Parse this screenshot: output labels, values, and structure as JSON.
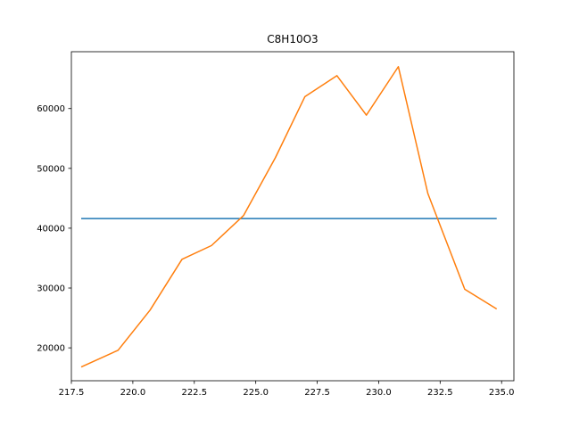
{
  "chart_data": {
    "type": "line",
    "title": "C8H10O3",
    "xlabel": "",
    "ylabel": "",
    "xlim": [
      217.5,
      235.5
    ],
    "ylim": [
      14500,
      69500
    ],
    "x_ticks": [
      217.5,
      220.0,
      222.5,
      225.0,
      227.5,
      230.0,
      232.5,
      235.0
    ],
    "x_tick_labels": [
      "217.5",
      "220.0",
      "222.5",
      "225.0",
      "227.5",
      "230.0",
      "232.5",
      "235.0"
    ],
    "y_ticks": [
      20000,
      30000,
      40000,
      50000,
      60000
    ],
    "y_tick_labels": [
      "20000",
      "30000",
      "40000",
      "50000",
      "60000"
    ],
    "grid": false,
    "series": [
      {
        "color": "#1f77b4",
        "x": [
          217.9,
          234.8
        ],
        "y": [
          41600,
          41600
        ]
      },
      {
        "color": "#ff7f0e",
        "x": [
          217.9,
          219.4,
          220.7,
          222.0,
          223.2,
          224.5,
          225.8,
          227.0,
          228.3,
          229.5,
          230.8,
          232.0,
          233.5,
          234.8
        ],
        "y": [
          16800,
          19600,
          26300,
          34800,
          37100,
          42100,
          51800,
          62000,
          65500,
          58900,
          67000,
          45800,
          29800,
          26500
        ]
      }
    ]
  }
}
